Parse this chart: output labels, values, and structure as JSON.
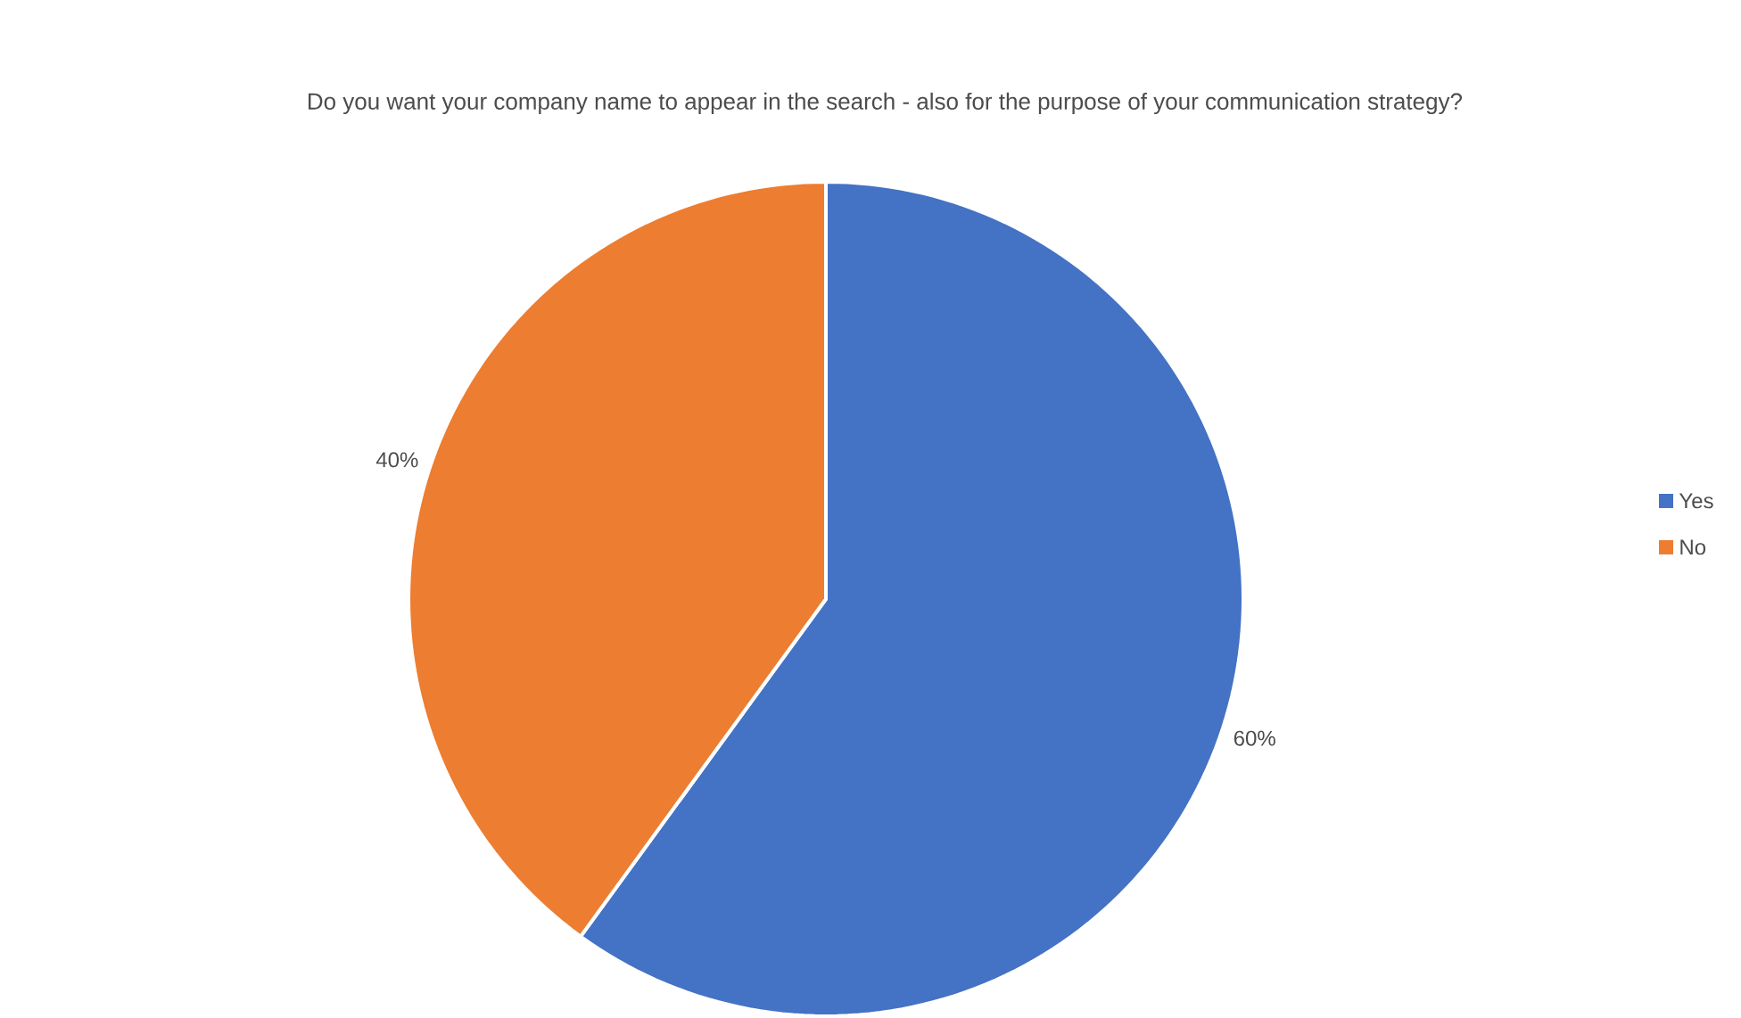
{
  "chart_data": {
    "type": "pie",
    "title": "Do you want your company name to appear in the search - also for the purpose of your communication strategy?",
    "categories": [
      "Yes",
      "No"
    ],
    "values": [
      60,
      40
    ],
    "colors": [
      "#4472c4",
      "#ed7d31"
    ],
    "value_labels": [
      "60%",
      "40%"
    ],
    "legend": "right"
  }
}
